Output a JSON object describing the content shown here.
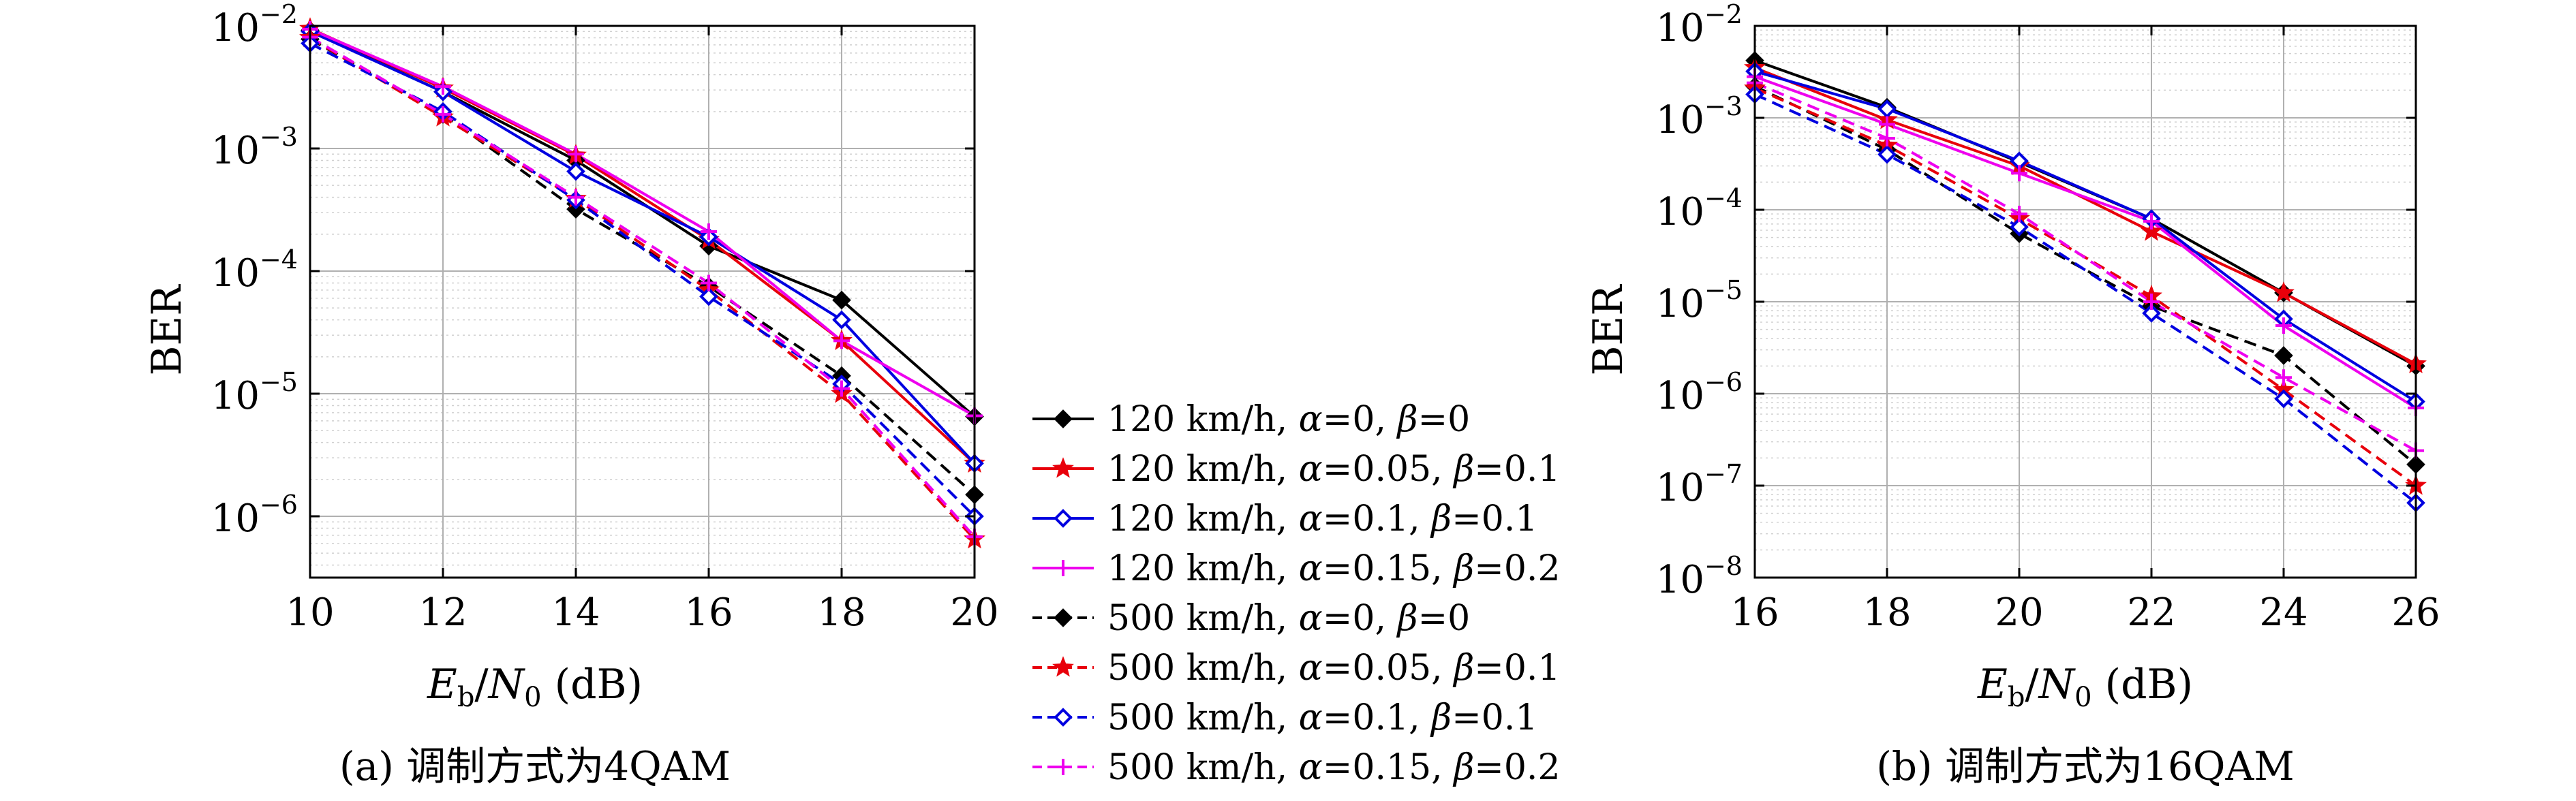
{
  "chart_data": [
    {
      "type": "line",
      "caption": "(a) 调制方式为4QAM",
      "xlabel": "E_b/N_0 (dB)",
      "ylabel": "BER",
      "xlim": [
        10,
        20
      ],
      "xticks": [
        10,
        12,
        14,
        16,
        18,
        20
      ],
      "ylim_exp": [
        -6.5,
        -2
      ],
      "yscale": "log",
      "yticks": [
        -6,
        -5,
        -4,
        -3,
        -2
      ],
      "grid": true,
      "x": [
        10,
        12,
        14,
        16,
        18,
        20
      ],
      "series": [
        {
          "name": "120 km/h, α=0, β=0",
          "values": [
            0.0092,
            0.0029,
            0.0008,
            0.00016,
            5.8e-05,
            6.5e-06
          ]
        },
        {
          "name": "120 km/h, α=0.05, β=0.1",
          "values": [
            0.0095,
            0.0031,
            0.00088,
            0.00018,
            2.7e-05,
            2.7e-06
          ]
        },
        {
          "name": "120 km/h, α=0.1, β=0.1",
          "values": [
            0.009,
            0.0029,
            0.00065,
            0.00019,
            4e-05,
            2.7e-06
          ]
        },
        {
          "name": "120 km/h, α=0.15, β=0.2",
          "values": [
            0.0094,
            0.0032,
            0.0009,
            0.00021,
            2.7e-05,
            6.6e-06
          ]
        },
        {
          "name": "500 km/h, α=0, β=0",
          "values": [
            0.0078,
            0.0019,
            0.00032,
            7.5e-05,
            1.4e-05,
            1.5e-06
          ]
        },
        {
          "name": "500 km/h, α=0.05, β=0.1",
          "values": [
            0.008,
            0.0018,
            0.00039,
            7e-05,
            1e-05,
            6.5e-07
          ]
        },
        {
          "name": "500 km/h, α=0.1, β=0.1",
          "values": [
            0.0072,
            0.002,
            0.00038,
            6.2e-05,
            1.2e-05,
            1e-06
          ]
        },
        {
          "name": "500 km/h, α=0.15, β=0.2",
          "values": [
            0.0081,
            0.0019,
            0.0004,
            8e-05,
            1.1e-05,
            6.8e-07
          ]
        }
      ]
    },
    {
      "type": "line",
      "caption": "(b) 调制方式为16QAM",
      "xlabel": "E_b/N_0 (dB)",
      "ylabel": "BER",
      "xlim": [
        16,
        26
      ],
      "xticks": [
        16,
        18,
        20,
        22,
        24,
        26
      ],
      "ylim_exp": [
        -8,
        -2
      ],
      "yscale": "log",
      "yticks": [
        -8,
        -7,
        -6,
        -5,
        -4,
        -3,
        -2
      ],
      "grid": true,
      "x": [
        16,
        18,
        20,
        22,
        24,
        26
      ],
      "series": [
        {
          "name": "120 km/h, α=0, β=0",
          "values": [
            0.0042,
            0.0013,
            0.00033,
            8e-05,
            1.25e-05,
            2e-06
          ]
        },
        {
          "name": "120 km/h, α=0.05, β=0.1",
          "values": [
            0.0035,
            0.00095,
            0.0003,
            5.8e-05,
            1.25e-05,
            2.1e-06
          ]
        },
        {
          "name": "120 km/h, α=0.1, β=0.1",
          "values": [
            0.0032,
            0.00125,
            0.00034,
            8e-05,
            6.5e-06,
            8.2e-07
          ]
        },
        {
          "name": "120 km/h, α=0.15, β=0.2",
          "values": [
            0.0028,
            0.00085,
            0.00025,
            7.5e-05,
            5.5e-06,
            7e-07
          ]
        },
        {
          "name": "500 km/h, α=0, β=0",
          "values": [
            0.0022,
            0.00045,
            5.5e-05,
            9e-06,
            2.6e-06,
            1.7e-07
          ]
        },
        {
          "name": "500 km/h, α=0.05, β=0.1",
          "values": [
            0.0021,
            0.0005,
            8e-05,
            1.15e-05,
            1.1e-06,
            1e-07
          ]
        },
        {
          "name": "500 km/h, α=0.1, β=0.1",
          "values": [
            0.0018,
            0.0004,
            6.5e-05,
            7.5e-06,
            8.8e-07,
            6.5e-08
          ]
        },
        {
          "name": "500 km/h, α=0.15, β=0.2",
          "values": [
            0.0024,
            0.0006,
            9e-05,
            1e-05,
            1.5e-06,
            2.4e-07
          ]
        }
      ]
    }
  ],
  "legend": {
    "placement": "center",
    "entries": [
      {
        "label": "120 km/h, α=0, β=0",
        "color": "#000000",
        "marker": "diamond-filled",
        "dash": "solid"
      },
      {
        "label": "120 km/h, α=0.05, β=0.1",
        "color": "#e8000b",
        "marker": "star",
        "dash": "solid"
      },
      {
        "label": "120 km/h, α=0.1, β=0.1",
        "color": "#0000e0",
        "marker": "diamond-open",
        "dash": "solid"
      },
      {
        "label": "120 km/h, α=0.15, β=0.2",
        "color": "#ee00ee",
        "marker": "plus",
        "dash": "solid"
      },
      {
        "label": "500 km/h, α=0, β=0",
        "color": "#000000",
        "marker": "diamond-filled",
        "dash": "dashed"
      },
      {
        "label": "500 km/h, α=0.05, β=0.1",
        "color": "#e8000b",
        "marker": "star",
        "dash": "dashed"
      },
      {
        "label": "500 km/h, α=0.1, β=0.1",
        "color": "#0000e0",
        "marker": "diamond-open",
        "dash": "dashed"
      },
      {
        "label": "500 km/h, α=0.15, β=0.2",
        "color": "#ee00ee",
        "marker": "plus",
        "dash": "dashed"
      }
    ]
  }
}
